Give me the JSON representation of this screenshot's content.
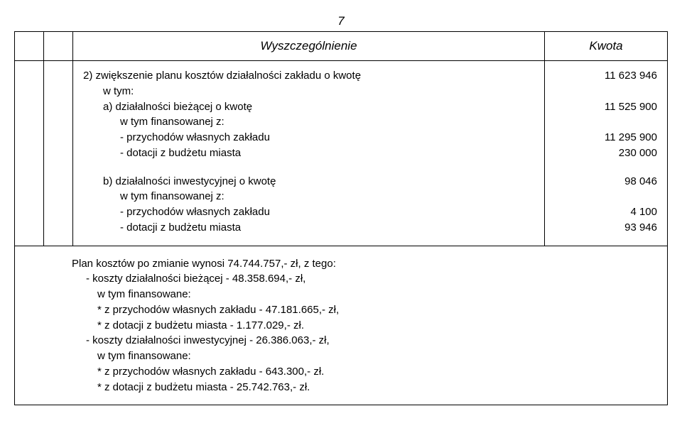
{
  "page_number": "7",
  "header": {
    "desc": "Wyszczególnienie",
    "amount": "Kwota"
  },
  "section2": {
    "title": "2) zwiększenie planu kosztów działalności zakładu o kwotę",
    "title_amount": "11 623 946",
    "wtym": "w tym:",
    "a_label": "a) działalności bieżącej o kwotę",
    "a_amount": "11 525 900",
    "a_fin": "w tym finansowanej z:",
    "a_przych": "- przychodów własnych zakładu",
    "a_przych_amount": "11 295 900",
    "a_dot": "- dotacji z budżetu miasta",
    "a_dot_amount": "230 000",
    "b_label": "b) działalności inwestycyjnej o kwotę",
    "b_amount": "98 046",
    "b_fin": "w tym finansowanej z:",
    "b_przych": "- przychodów własnych zakładu",
    "b_przych_amount": "4 100",
    "b_dot": "- dotacji z budżetu miasta",
    "b_dot_amount": "93 946"
  },
  "plan": {
    "l1": "Plan kosztów po zmianie wynosi  74.744.757,- zł, z tego:",
    "l2": "- koszty działalności bieżącej - 48.358.694,- zł,",
    "l3": "w tym finansowane:",
    "l4": "*  z przychodów własnych zakładu - 47.181.665,- zł,",
    "l5": "*  z dotacji z budżetu miasta - 1.177.029,- zł.",
    "l6": "- koszty działalności inwestycyjnej - 26.386.063,- zł,",
    "l7": "w tym finansowane:",
    "l8": "*  z przychodów własnych zakładu - 643.300,- zł.",
    "l9": "*  z dotacji z budżetu miasta - 25.742.763,- zł."
  }
}
